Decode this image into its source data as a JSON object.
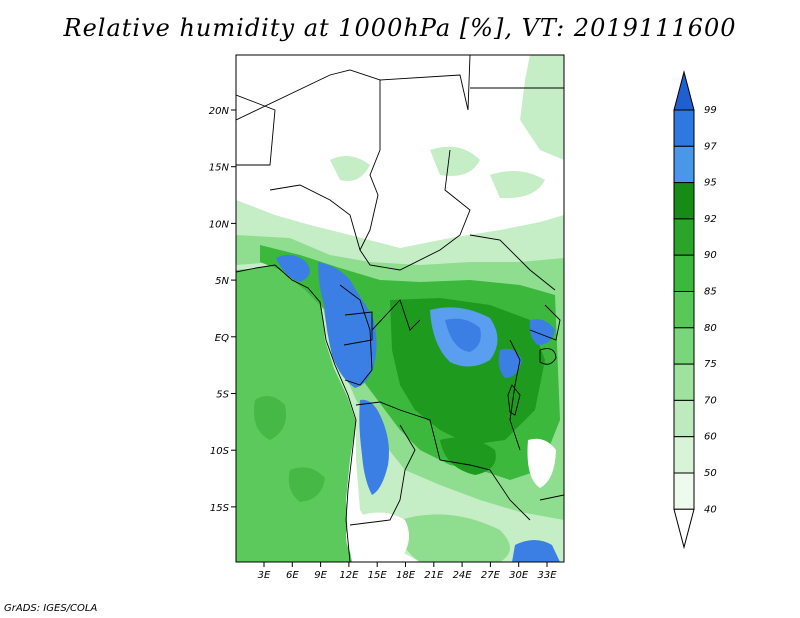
{
  "title": "Relative humidity at 1000hPa [%], VT: 2019111600",
  "credit": "GrADS: IGES/COLA",
  "map": {
    "lat_ticks": [
      "20N",
      "15N",
      "10N",
      "5N",
      "EQ",
      "5S",
      "10S",
      "15S"
    ],
    "lon_ticks": [
      "3E",
      "6E",
      "9E",
      "12E",
      "15E",
      "18E",
      "21E",
      "24E",
      "27E",
      "30E",
      "33E"
    ]
  },
  "colorbar": {
    "levels": [
      "99",
      "97",
      "95",
      "92",
      "90",
      "85",
      "80",
      "75",
      "70",
      "60",
      "50",
      "40"
    ],
    "colors": [
      "#1f5fd0",
      "#2f78e0",
      "#4a97ea",
      "#168b16",
      "#2aa52a",
      "#3cb83c",
      "#58c858",
      "#7ad67a",
      "#9ee29e",
      "#bdebbd",
      "#d8f4d8",
      "#effaef",
      "#ffffff"
    ],
    "colors_note": ""
  },
  "colors": {
    "ocean": "#5bc95b",
    "ocean_dark": "#45b845",
    "dry_land": "#ffffff",
    "light_green": "#c6eec6",
    "medium_green": "#8fde8f",
    "rain_green": "#3cb83c",
    "dark_green": "#1e9b1e",
    "blue": "#3b7fe4",
    "blue_light": "#5a9ef0"
  }
}
